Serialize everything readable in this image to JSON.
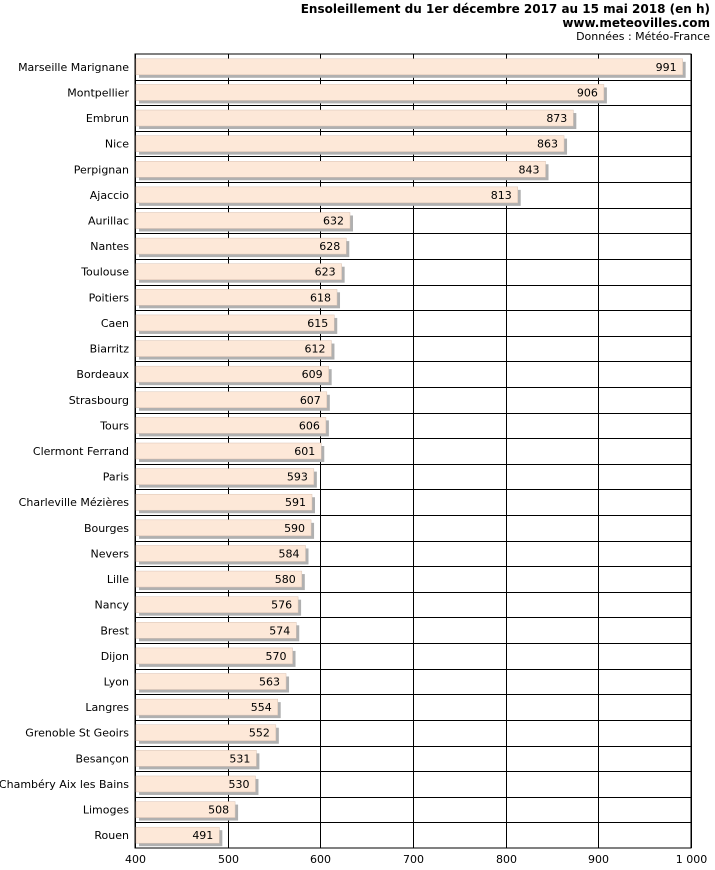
{
  "header": {
    "title": "Ensoleillement du 1er décembre 2017 au 15 mai 2018 (en h)",
    "site": "www.meteovilles.com",
    "source": "Données : Météo-France"
  },
  "colors": {
    "bar_fill": "#fde8d8",
    "bar_shadow": "#b0b0b0",
    "grid": "#000000",
    "text": "#000000"
  },
  "chart_data": {
    "type": "bar",
    "orientation": "horizontal",
    "title": "Ensoleillement du 1er décembre 2017 au 15 mai 2018 (en h)",
    "xlabel": "",
    "ylabel": "",
    "xlim": [
      400,
      1000
    ],
    "xticks": [
      400,
      500,
      600,
      700,
      800,
      900,
      1000
    ],
    "xtick_labels": [
      "400",
      "500",
      "600",
      "700",
      "800",
      "900",
      "1 000"
    ],
    "grid": true,
    "categories": [
      "Marseille Marignane",
      "Montpellier",
      "Embrun",
      "Nice",
      "Perpignan",
      "Ajaccio",
      "Aurillac",
      "Nantes",
      "Toulouse",
      "Poitiers",
      "Caen",
      "Biarritz",
      "Bordeaux",
      "Strasbourg",
      "Tours",
      "Clermont Ferrand",
      "Paris",
      "Charleville Mézières",
      "Bourges",
      "Nevers",
      "Lille",
      "Nancy",
      "Brest",
      "Dijon",
      "Lyon",
      "Langres",
      "Grenoble St Geoirs",
      "Besançon",
      "Chambéry Aix les Bains",
      "Limoges",
      "Rouen"
    ],
    "values": [
      991,
      906,
      873,
      863,
      843,
      813,
      632,
      628,
      623,
      618,
      615,
      612,
      609,
      607,
      606,
      601,
      593,
      591,
      590,
      584,
      580,
      576,
      574,
      570,
      563,
      554,
      552,
      531,
      530,
      508,
      491
    ]
  }
}
